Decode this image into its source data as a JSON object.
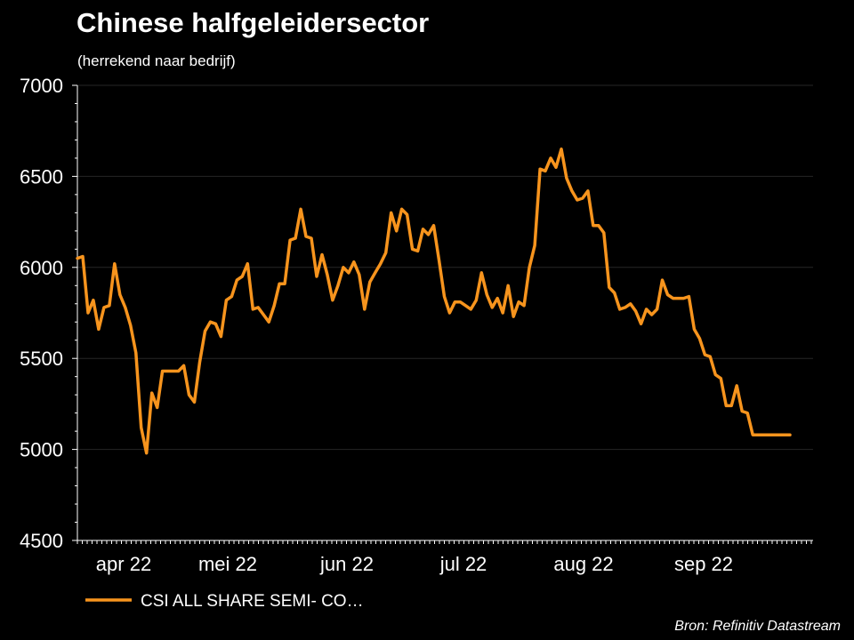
{
  "title": "Chinese halfgeleidersector",
  "subtitle": "(herrekend naar bedrijf)",
  "source": "Bron: Refinitiv Datastream",
  "colors": {
    "background": "#000000",
    "line": "#f7941d",
    "text": "#ffffff",
    "grid": "#262626"
  },
  "chart_data": {
    "type": "line",
    "title": "Chinese halfgeleidersector",
    "subtitle": "(herrekend naar bedrijf)",
    "ylim": [
      4500,
      7000
    ],
    "y_ticks": [
      4500,
      5000,
      5500,
      6000,
      6500,
      7000
    ],
    "x_tick_labels": [
      "apr 22",
      "mei 22",
      "jun 22",
      "jul 22",
      "aug 22",
      "sep 22"
    ],
    "grid": "horizontal",
    "legend_position": "bottom-left",
    "series": [
      {
        "name": "CSI ALL SHARE SEMI- CO…",
        "color": "#f7941d",
        "values": [
          6050,
          6060,
          5750,
          5820,
          5660,
          5780,
          5790,
          6020,
          5850,
          5780,
          5680,
          5530,
          5120,
          4980,
          5310,
          5230,
          5430,
          5430,
          5430,
          5430,
          5460,
          5300,
          5260,
          5480,
          5650,
          5700,
          5690,
          5620,
          5820,
          5840,
          5930,
          5950,
          6020,
          5770,
          5780,
          5740,
          5700,
          5790,
          5910,
          5910,
          6150,
          6160,
          6320,
          6170,
          6160,
          5950,
          6070,
          5960,
          5820,
          5900,
          6000,
          5970,
          6030,
          5960,
          5770,
          5920,
          5970,
          6020,
          6080,
          6300,
          6200,
          6320,
          6290,
          6100,
          6090,
          6210,
          6180,
          6230,
          6040,
          5840,
          5750,
          5810,
          5810,
          5790,
          5770,
          5820,
          5970,
          5850,
          5780,
          5830,
          5750,
          5900,
          5730,
          5810,
          5790,
          6000,
          6120,
          6540,
          6530,
          6600,
          6550,
          6650,
          6490,
          6420,
          6370,
          6380,
          6420,
          6230,
          6230,
          6190,
          5890,
          5860,
          5770,
          5780,
          5800,
          5760,
          5690,
          5770,
          5740,
          5770,
          5930,
          5850,
          5830,
          5830,
          5830,
          5840,
          5660,
          5610,
          5520,
          5510,
          5410,
          5390,
          5240,
          5240,
          5350,
          5210,
          5200,
          5080,
          5080,
          5080,
          5080,
          5080,
          5080,
          5080,
          5080
        ]
      }
    ]
  }
}
